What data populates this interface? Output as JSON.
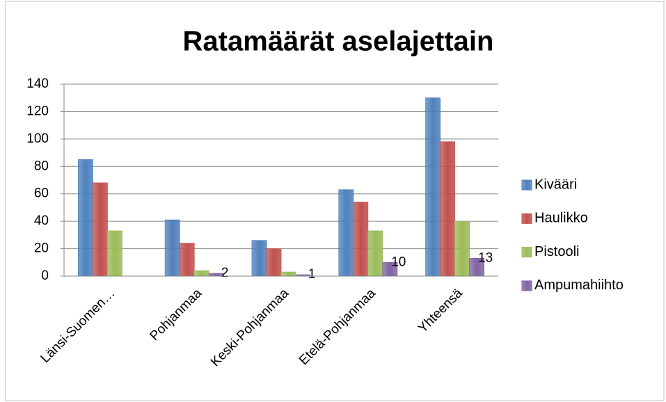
{
  "chart_data": {
    "type": "bar",
    "title": "Ratamäärät aselajettain",
    "categories": [
      "Länsi-Suomen…",
      "Pohjanmaa",
      "Keski-Pohjanmaa",
      "Etelä-Pohjanmaa",
      "Yhteensä"
    ],
    "series": [
      {
        "name": "Kivääri",
        "color": "#4f81bd",
        "values": [
          85,
          41,
          26,
          63,
          130
        ]
      },
      {
        "name": "Haulikko",
        "color": "#c0504d",
        "values": [
          68,
          24,
          20,
          54,
          98
        ]
      },
      {
        "name": "Pistooli",
        "color": "#9bbb59",
        "values": [
          33,
          4,
          3,
          33,
          40
        ]
      },
      {
        "name": "Ampumahiihto",
        "color": "#8064a2",
        "values": [
          null,
          2,
          1,
          10,
          13
        ],
        "data_labels": true
      }
    ],
    "ylim": [
      0,
      140
    ],
    "yticks": [
      0,
      20,
      40,
      60,
      80,
      100,
      120,
      140
    ],
    "grid": true,
    "legend": "right"
  }
}
